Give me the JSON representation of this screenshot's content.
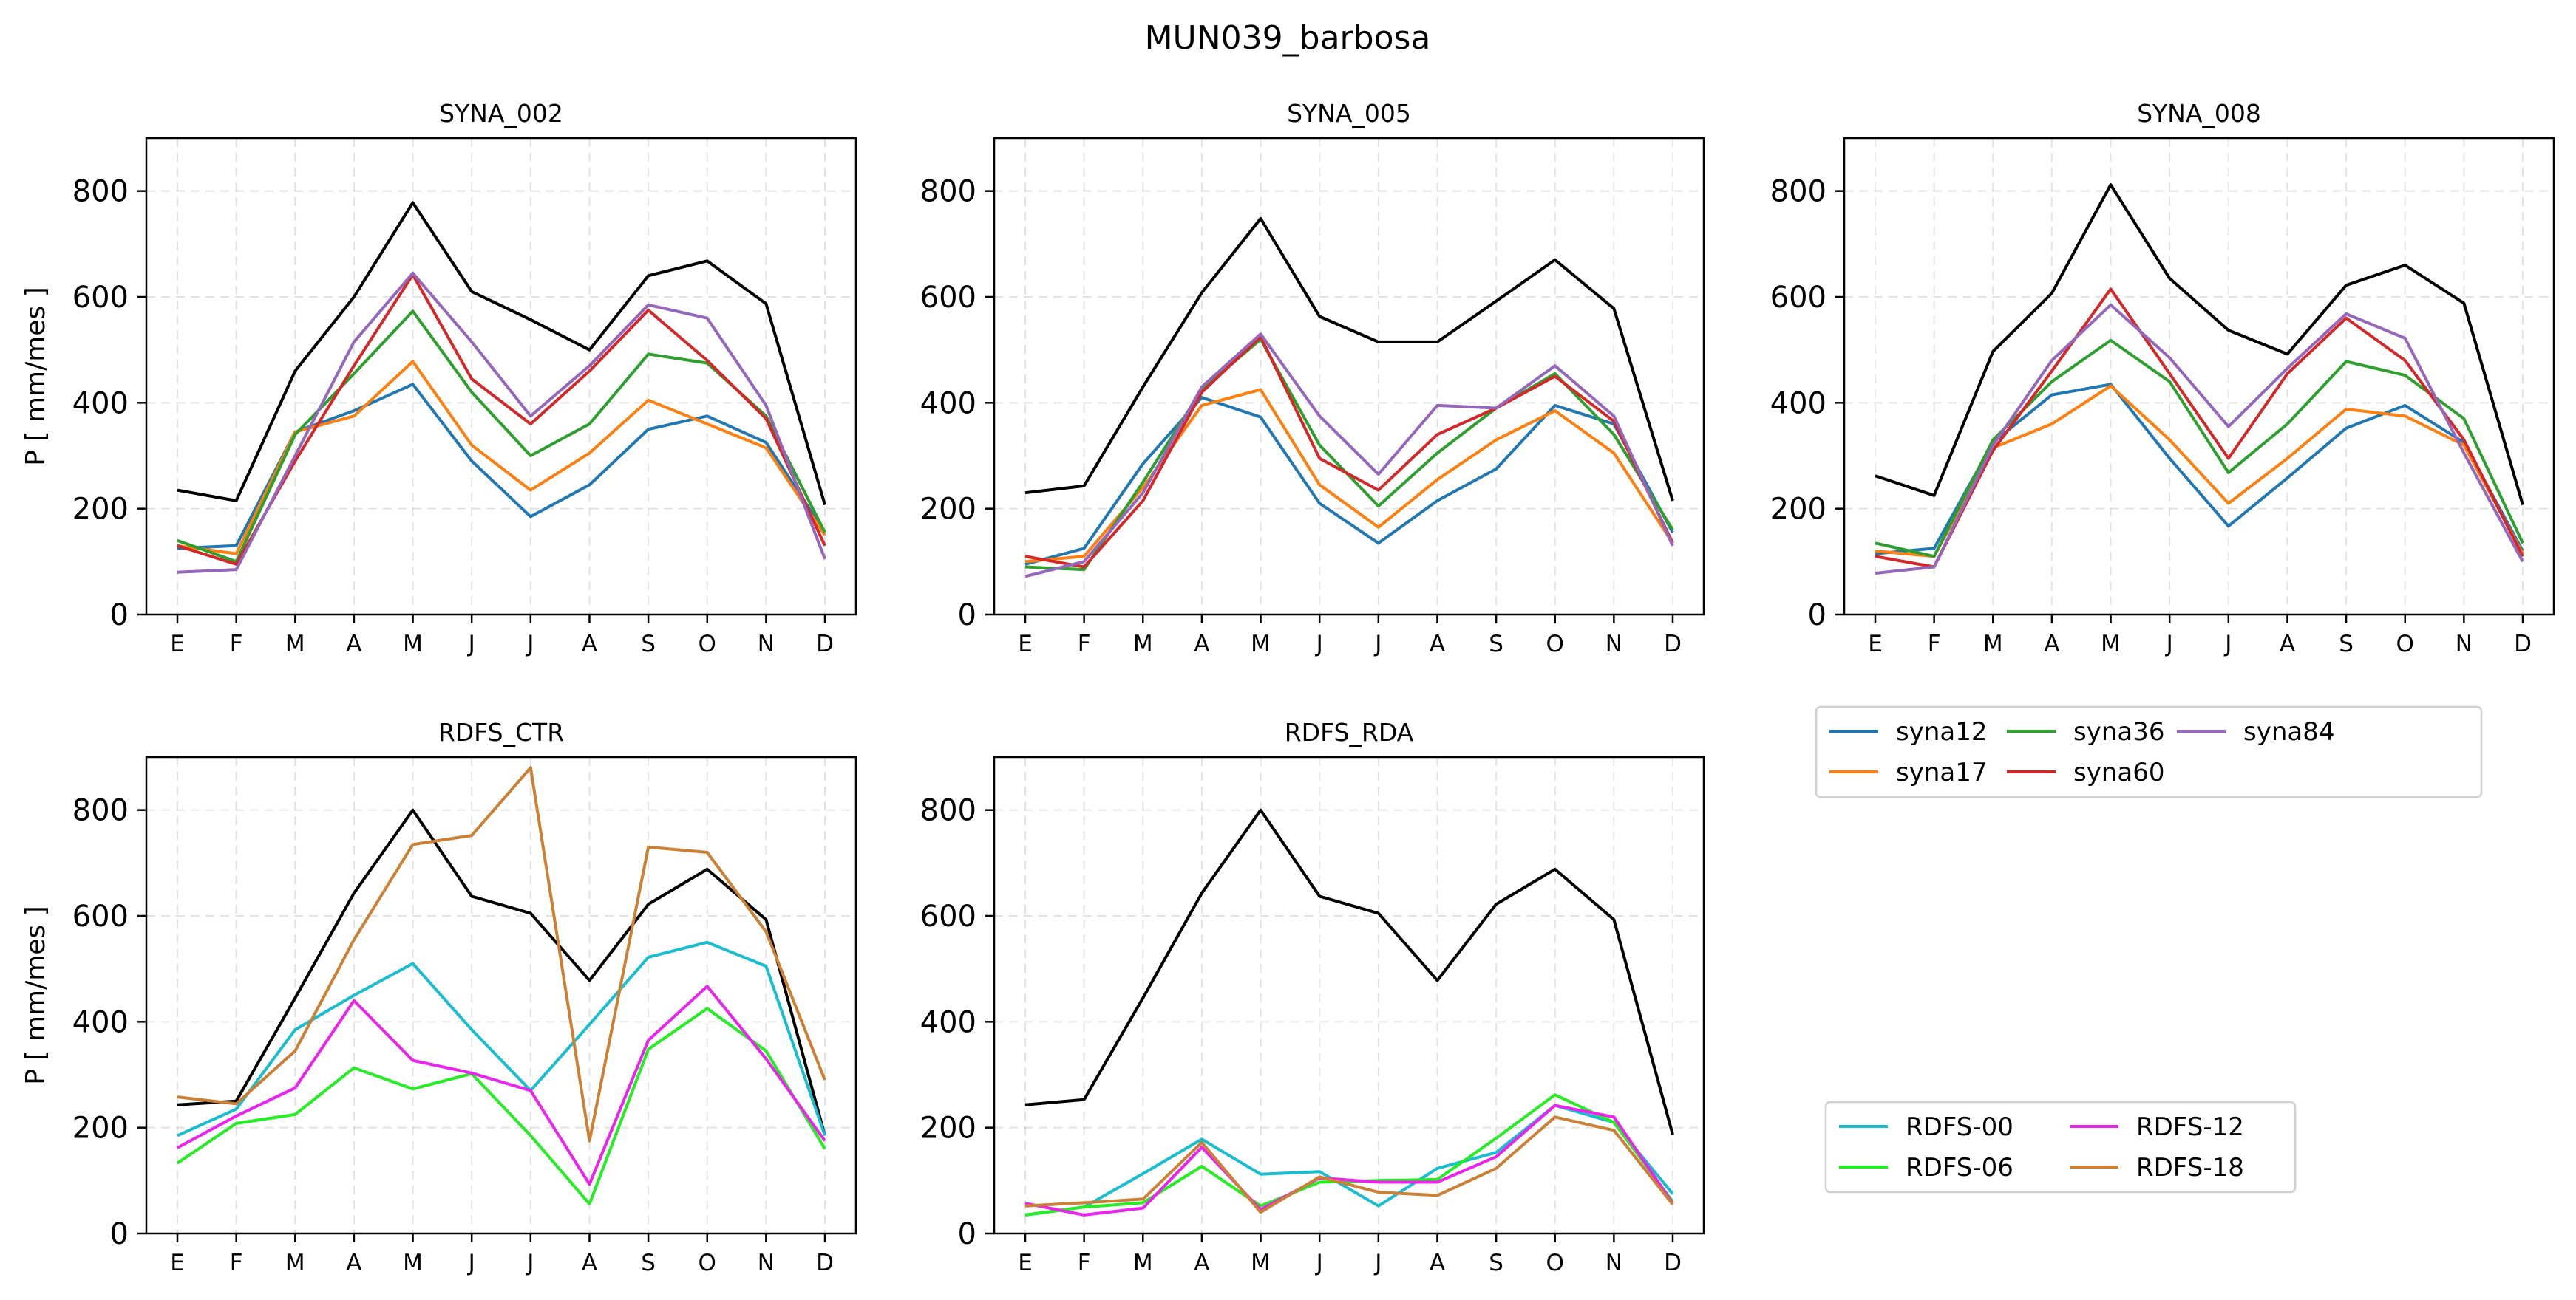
{
  "figure_title": "MUN039_barbosa",
  "chart_data": [
    {
      "type": "line",
      "title": "SYNA_002",
      "ylabel": "P [ mm/mes ]",
      "ylim": [
        0,
        900
      ],
      "yticks": [
        0,
        200,
        400,
        600,
        800
      ],
      "categories": [
        "E",
        "F",
        "M",
        "A",
        "M",
        "J",
        "J",
        "A",
        "S",
        "O",
        "N",
        "D"
      ],
      "grid": true,
      "series": [
        {
          "name": "",
          "color": "#000000",
          "values": [
            235,
            215,
            460,
            600,
            778,
            610,
            557,
            500,
            640,
            668,
            587,
            207
          ]
        },
        {
          "name": "syna12",
          "color": "#1f77b4",
          "values": [
            125,
            130,
            345,
            385,
            435,
            290,
            185,
            245,
            350,
            375,
            325,
            155
          ]
        },
        {
          "name": "syna17",
          "color": "#ff7f0e",
          "values": [
            130,
            115,
            345,
            375,
            478,
            320,
            235,
            305,
            405,
            360,
            315,
            150
          ]
        },
        {
          "name": "syna36",
          "color": "#2ca02c",
          "values": [
            140,
            100,
            340,
            455,
            573,
            420,
            300,
            360,
            492,
            475,
            375,
            155
          ]
        },
        {
          "name": "syna60",
          "color": "#d62728",
          "values": [
            130,
            95,
            290,
            470,
            642,
            445,
            360,
            460,
            575,
            480,
            370,
            130
          ]
        },
        {
          "name": "syna84",
          "color": "#9467bd",
          "values": [
            80,
            85,
            300,
            515,
            645,
            515,
            375,
            470,
            585,
            560,
            395,
            105
          ]
        }
      ]
    },
    {
      "type": "line",
      "title": "SYNA_005",
      "ylim": [
        0,
        900
      ],
      "yticks": [
        0,
        200,
        400,
        600,
        800
      ],
      "categories": [
        "E",
        "F",
        "M",
        "A",
        "M",
        "J",
        "J",
        "A",
        "S",
        "O",
        "N",
        "D"
      ],
      "grid": true,
      "series": [
        {
          "name": "",
          "color": "#000000",
          "values": [
            230,
            243,
            430,
            608,
            748,
            563,
            515,
            515,
            592,
            670,
            578,
            215
          ]
        },
        {
          "name": "syna12",
          "color": "#1f77b4",
          "values": [
            95,
            125,
            285,
            410,
            373,
            210,
            135,
            215,
            275,
            395,
            360,
            155
          ]
        },
        {
          "name": "syna17",
          "color": "#ff7f0e",
          "values": [
            100,
            110,
            240,
            395,
            425,
            245,
            165,
            255,
            330,
            385,
            305,
            135
          ]
        },
        {
          "name": "syna36",
          "color": "#2ca02c",
          "values": [
            90,
            85,
            250,
            425,
            520,
            320,
            205,
            305,
            390,
            455,
            340,
            160
          ]
        },
        {
          "name": "syna60",
          "color": "#d62728",
          "values": [
            110,
            90,
            215,
            420,
            525,
            295,
            235,
            340,
            390,
            450,
            365,
            135
          ]
        },
        {
          "name": "syna84",
          "color": "#9467bd",
          "values": [
            72,
            100,
            230,
            430,
            530,
            375,
            265,
            395,
            390,
            470,
            375,
            130
          ]
        }
      ]
    },
    {
      "type": "line",
      "title": "SYNA_008",
      "ylim": [
        0,
        900
      ],
      "yticks": [
        0,
        200,
        400,
        600,
        800
      ],
      "categories": [
        "E",
        "F",
        "M",
        "A",
        "M",
        "J",
        "J",
        "A",
        "S",
        "O",
        "N",
        "D"
      ],
      "grid": true,
      "series": [
        {
          "name": "",
          "color": "#000000",
          "values": [
            262,
            225,
            497,
            607,
            812,
            635,
            537,
            492,
            622,
            660,
            588,
            207
          ]
        },
        {
          "name": "syna12",
          "color": "#1f77b4",
          "values": [
            115,
            125,
            325,
            415,
            435,
            295,
            167,
            258,
            352,
            395,
            325,
            120
          ]
        },
        {
          "name": "syna17",
          "color": "#ff7f0e",
          "values": [
            120,
            110,
            315,
            360,
            432,
            330,
            210,
            295,
            388,
            375,
            320,
            115
          ]
        },
        {
          "name": "syna36",
          "color": "#2ca02c",
          "values": [
            135,
            110,
            330,
            440,
            518,
            440,
            268,
            360,
            478,
            452,
            370,
            135
          ]
        },
        {
          "name": "syna60",
          "color": "#d62728",
          "values": [
            110,
            90,
            310,
            460,
            615,
            455,
            295,
            455,
            560,
            480,
            330,
            110
          ]
        },
        {
          "name": "syna84",
          "color": "#9467bd",
          "values": [
            78,
            90,
            320,
            480,
            585,
            485,
            355,
            465,
            568,
            522,
            305,
            100
          ]
        }
      ]
    },
    {
      "type": "line",
      "title": "RDFS_CTR",
      "ylabel": "P [ mm/mes ]",
      "ylim": [
        0,
        900
      ],
      "yticks": [
        0,
        200,
        400,
        600,
        800
      ],
      "categories": [
        "E",
        "F",
        "M",
        "A",
        "M",
        "J",
        "J",
        "A",
        "S",
        "O",
        "N",
        "D"
      ],
      "grid": true,
      "series": [
        {
          "name": "",
          "color": "#000000",
          "values": [
            243,
            250,
            445,
            643,
            800,
            637,
            605,
            478,
            622,
            688,
            593,
            185
          ]
        },
        {
          "name": "RDFS-00",
          "color": "#17becf",
          "values": [
            185,
            235,
            385,
            450,
            510,
            385,
            270,
            395,
            522,
            550,
            505,
            185
          ]
        },
        {
          "name": "RDFS-06",
          "color": "#22ee22",
          "values": [
            133,
            208,
            225,
            313,
            273,
            302,
            185,
            56,
            348,
            425,
            345,
            160
          ]
        },
        {
          "name": "RDFS-12",
          "color": "#ee22ee",
          "values": [
            162,
            222,
            275,
            440,
            327,
            303,
            270,
            93,
            365,
            467,
            330,
            175
          ]
        },
        {
          "name": "RDFS-18",
          "color": "#cc8033",
          "values": [
            258,
            245,
            345,
            555,
            735,
            752,
            880,
            175,
            730,
            720,
            570,
            290
          ]
        }
      ]
    },
    {
      "type": "line",
      "title": "RDFS_RDA",
      "ylim": [
        0,
        900
      ],
      "yticks": [
        0,
        200,
        400,
        600,
        800
      ],
      "categories": [
        "E",
        "F",
        "M",
        "A",
        "M",
        "J",
        "J",
        "A",
        "S",
        "O",
        "N",
        "D"
      ],
      "grid": true,
      "series": [
        {
          "name": "",
          "color": "#000000",
          "values": [
            243,
            253,
            445,
            643,
            800,
            637,
            605,
            478,
            622,
            688,
            593,
            187
          ]
        },
        {
          "name": "RDFS-00",
          "color": "#17becf",
          "values": [
            35,
            50,
            113,
            178,
            112,
            117,
            52,
            123,
            153,
            242,
            210,
            75
          ]
        },
        {
          "name": "RDFS-06",
          "color": "#22ee22",
          "values": [
            35,
            50,
            58,
            127,
            52,
            97,
            100,
            102,
            180,
            262,
            210,
            60
          ]
        },
        {
          "name": "RDFS-12",
          "color": "#ee22ee",
          "values": [
            57,
            35,
            48,
            163,
            45,
            105,
            97,
            97,
            145,
            242,
            220,
            57
          ]
        },
        {
          "name": "RDFS-18",
          "color": "#cc8033",
          "values": [
            52,
            58,
            65,
            172,
            40,
            107,
            78,
            72,
            123,
            220,
            195,
            55
          ]
        }
      ]
    }
  ],
  "legends": [
    {
      "entries": [
        {
          "label": "syna12",
          "color": "#1f77b4"
        },
        {
          "label": "syna17",
          "color": "#ff7f0e"
        },
        {
          "label": "syna36",
          "color": "#2ca02c"
        },
        {
          "label": "syna60",
          "color": "#d62728"
        },
        {
          "label": "syna84",
          "color": "#9467bd"
        }
      ]
    },
    {
      "entries": [
        {
          "label": "RDFS-00",
          "color": "#17becf"
        },
        {
          "label": "RDFS-06",
          "color": "#22ee22"
        },
        {
          "label": "RDFS-12",
          "color": "#ee22ee"
        },
        {
          "label": "RDFS-18",
          "color": "#cc8033"
        }
      ]
    }
  ]
}
